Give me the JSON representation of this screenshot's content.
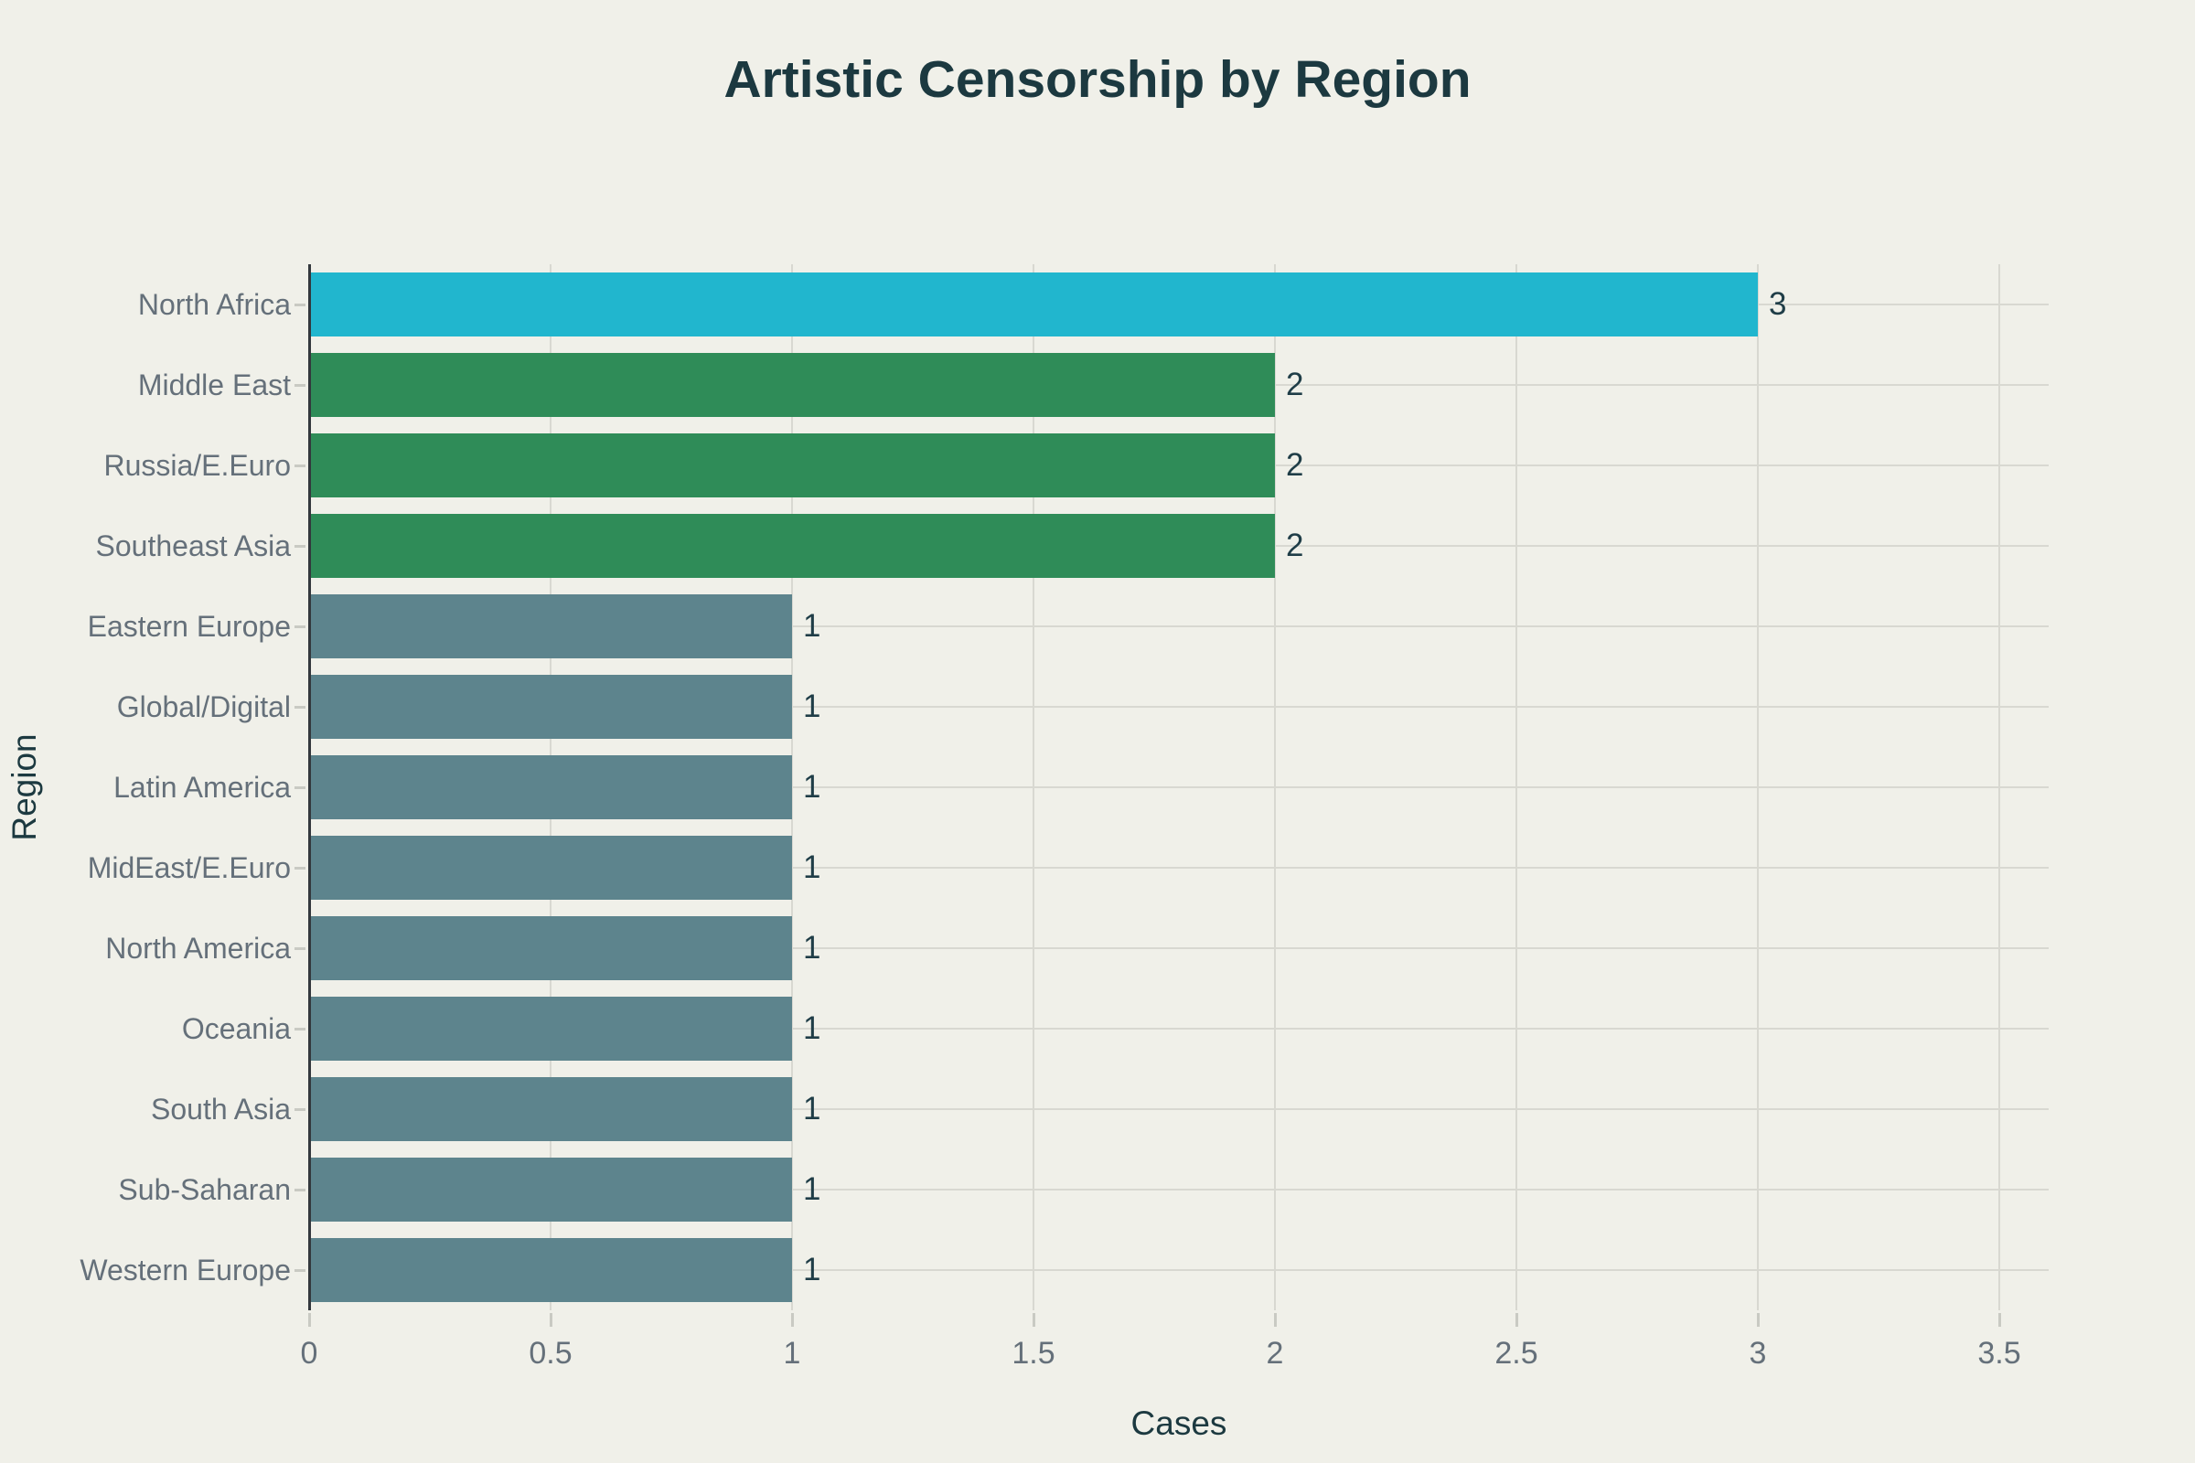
{
  "chart_data": {
    "type": "bar",
    "orientation": "horizontal",
    "title": "Artistic Censorship by Region",
    "xlabel": "Cases",
    "ylabel": "Region",
    "categories": [
      "North Africa",
      "Middle East",
      "Russia/E.Euro",
      "Southeast Asia",
      "Eastern Europe",
      "Global/Digital",
      "Latin America",
      "MidEast/E.Euro",
      "North America",
      "Oceania",
      "South Asia",
      "Sub-Saharan",
      "Western Europe"
    ],
    "values": [
      3,
      2,
      2,
      2,
      1,
      1,
      1,
      1,
      1,
      1,
      1,
      1,
      1
    ],
    "value_labels": [
      "3",
      "2",
      "2",
      "2",
      "1",
      "1",
      "1",
      "1",
      "1",
      "1",
      "1",
      "1",
      "1"
    ],
    "bar_colors": [
      "#21B6CE",
      "#2F8C58",
      "#2F8C58",
      "#2F8C58",
      "#5D848D",
      "#5D848D",
      "#5D848D",
      "#5D848D",
      "#5D848D",
      "#5D848D",
      "#5D848D",
      "#5D848D",
      "#5D848D"
    ],
    "x_ticks": [
      0,
      0.5,
      1,
      1.5,
      2,
      2.5,
      3,
      3.5
    ],
    "x_tick_labels": [
      "0",
      "0.5",
      "1",
      "1.5",
      "2",
      "2.5",
      "3",
      "3.5"
    ],
    "xlim": [
      0,
      3.6
    ],
    "grid": true,
    "legend": false,
    "styles": {
      "background": "#F0F0E9",
      "grid_color": "#D8D8D1",
      "tick_mark_color": "#C9CAC3",
      "axis_line_color": "#33383D",
      "tick_label_color": "#65707A",
      "title_color": "#1C3940",
      "axis_title_color": "#1C3940",
      "value_label_color": "#1F3D47",
      "color_value_3": "#21B6CE",
      "color_value_2": "#2F8C58",
      "color_value_1": "#5D848D"
    }
  }
}
